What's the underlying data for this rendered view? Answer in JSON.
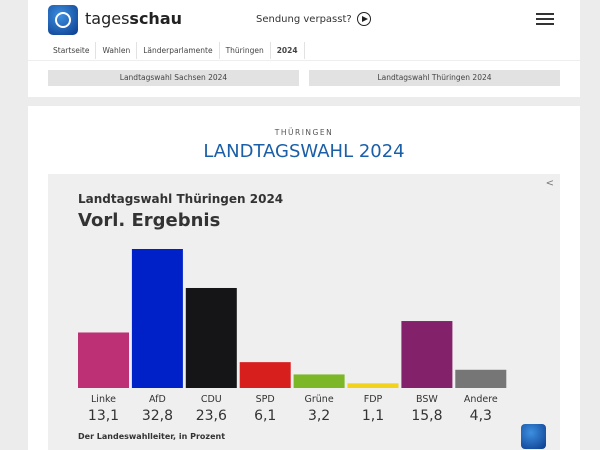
{
  "header": {
    "brand_light": "tages",
    "brand_bold": "schau",
    "missed": "Sendung verpasst?",
    "breadcrumb": [
      "Startseite",
      "Wahlen",
      "Länderparlamente",
      "Thüringen",
      "2024"
    ],
    "tabs": [
      "Landtagswahl Sachsen 2024",
      "Landtagswahl Thüringen 2024"
    ]
  },
  "main": {
    "kicker": "THÜRINGEN",
    "title": "LANDTAGSWAHL 2024"
  },
  "chart_data": {
    "type": "bar",
    "title": "Landtagswahl Thüringen 2024",
    "subtitle": "Vorl. Ergebnis",
    "source": "Der Landeswahlleiter, in Prozent",
    "categories": [
      "Linke",
      "AfD",
      "CDU",
      "SPD",
      "Grüne",
      "FDP",
      "BSW",
      "Andere"
    ],
    "values": [
      13.1,
      32.8,
      23.6,
      6.1,
      3.2,
      1.1,
      15.8,
      4.3
    ],
    "labels": [
      "13,1",
      "32,8",
      "23,6",
      "6,1",
      "3,2",
      "1,1",
      "15,8",
      "4,3"
    ],
    "colors": [
      "#be3075",
      "#0021c8",
      "#151518",
      "#d71f1d",
      "#7bb726",
      "#f2d21a",
      "#83216b",
      "#767676"
    ],
    "ylim": [
      0,
      32.8
    ],
    "grid": false
  }
}
